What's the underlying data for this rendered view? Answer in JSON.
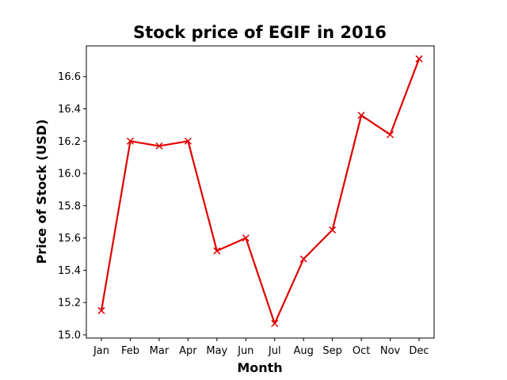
{
  "chart_data": {
    "type": "line",
    "title": "Stock price of EGIF in 2016",
    "xlabel": "Month",
    "ylabel": "Price of Stock (USD)",
    "categories": [
      "Jan",
      "Feb",
      "Mar",
      "Apr",
      "May",
      "Jun",
      "Jul",
      "Aug",
      "Sep",
      "Oct",
      "Nov",
      "Dec"
    ],
    "series": [
      {
        "values": [
          15.15,
          16.2,
          16.17,
          16.2,
          15.52,
          15.6,
          15.07,
          15.47,
          15.65,
          16.36,
          16.24,
          16.71
        ],
        "color": "#e00000",
        "marker": "x"
      }
    ],
    "ylim": [
      14.98,
      16.79
    ],
    "yticks": [
      "15.0",
      "15.2",
      "15.4",
      "15.6",
      "15.8",
      "16.0",
      "16.2",
      "16.4",
      "16.6"
    ],
    "grid": false
  }
}
